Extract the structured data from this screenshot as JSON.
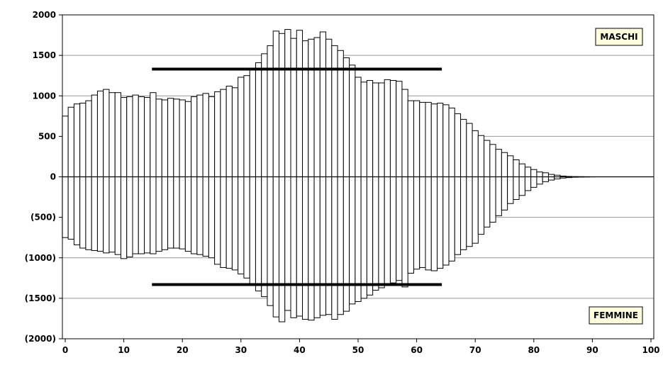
{
  "chart_data": {
    "type": "bar",
    "title": "",
    "xlabel": "",
    "ylabel": "",
    "xlim": [
      0,
      100
    ],
    "ylim": [
      -2000,
      2000
    ],
    "grid": true,
    "x": [
      0,
      1,
      2,
      3,
      4,
      5,
      6,
      7,
      8,
      9,
      10,
      11,
      12,
      13,
      14,
      15,
      16,
      17,
      18,
      19,
      20,
      21,
      22,
      23,
      24,
      25,
      26,
      27,
      28,
      29,
      30,
      31,
      32,
      33,
      34,
      35,
      36,
      37,
      38,
      39,
      40,
      41,
      42,
      43,
      44,
      45,
      46,
      47,
      48,
      49,
      50,
      51,
      52,
      53,
      54,
      55,
      56,
      57,
      58,
      59,
      60,
      61,
      62,
      63,
      64,
      65,
      66,
      67,
      68,
      69,
      70,
      71,
      72,
      73,
      74,
      75,
      76,
      77,
      78,
      79,
      80,
      81,
      82,
      83,
      84,
      85,
      86,
      87,
      88,
      89,
      90,
      91,
      92,
      93,
      94,
      95,
      96,
      97,
      98,
      99,
      100
    ],
    "series": [
      {
        "name": "MASCHI",
        "values": [
          750,
          860,
          900,
          910,
          940,
          1010,
          1060,
          1080,
          1040,
          1040,
          980,
          990,
          1010,
          990,
          980,
          1040,
          960,
          950,
          970,
          960,
          950,
          930,
          990,
          1010,
          1030,
          990,
          1050,
          1080,
          1120,
          1100,
          1230,
          1250,
          1330,
          1410,
          1520,
          1620,
          1800,
          1770,
          1820,
          1710,
          1810,
          1680,
          1700,
          1720,
          1790,
          1700,
          1620,
          1560,
          1470,
          1380,
          1230,
          1170,
          1190,
          1160,
          1160,
          1200,
          1190,
          1180,
          1080,
          940,
          940,
          920,
          920,
          900,
          910,
          890,
          850,
          780,
          710,
          660,
          570,
          510,
          450,
          400,
          340,
          300,
          260,
          210,
          160,
          120,
          90,
          60,
          50,
          30,
          20,
          10,
          5,
          3,
          2,
          1,
          0,
          0,
          0,
          0,
          0,
          0,
          0,
          0,
          0,
          0,
          0
        ]
      },
      {
        "name": "FEMMINE",
        "values": [
          -750,
          -770,
          -840,
          -880,
          -900,
          -910,
          -920,
          -940,
          -930,
          -960,
          -1010,
          -990,
          -950,
          -950,
          -940,
          -950,
          -920,
          -900,
          -880,
          -880,
          -890,
          -920,
          -950,
          -960,
          -980,
          -1000,
          -1080,
          -1120,
          -1130,
          -1150,
          -1200,
          -1250,
          -1330,
          -1410,
          -1480,
          -1590,
          -1730,
          -1790,
          -1650,
          -1740,
          -1720,
          -1760,
          -1770,
          -1740,
          -1710,
          -1700,
          -1760,
          -1700,
          -1660,
          -1570,
          -1540,
          -1500,
          -1460,
          -1400,
          -1370,
          -1320,
          -1310,
          -1280,
          -1360,
          -1190,
          -1140,
          -1120,
          -1150,
          -1160,
          -1130,
          -1090,
          -1040,
          -960,
          -900,
          -860,
          -820,
          -710,
          -620,
          -560,
          -480,
          -410,
          -330,
          -280,
          -230,
          -170,
          -130,
          -90,
          -60,
          -40,
          -25,
          -15,
          -10,
          -5,
          -3,
          -2,
          -1,
          0,
          0,
          0,
          0,
          0,
          0,
          0,
          0,
          0,
          0
        ]
      }
    ],
    "reference_lines": [
      {
        "y": 1330,
        "x_start": 14.8,
        "x_end": 64.3
      },
      {
        "y": -1330,
        "x_start": 14.8,
        "x_end": 64.3
      }
    ],
    "y_ticks": [
      {
        "value": 2000,
        "label": "2000"
      },
      {
        "value": 1500,
        "label": "1500"
      },
      {
        "value": 1000,
        "label": "1000"
      },
      {
        "value": 500,
        "label": "500"
      },
      {
        "value": 0,
        "label": "0"
      },
      {
        "value": -500,
        "label": "(500)"
      },
      {
        "value": -1000,
        "label": "(1000)"
      },
      {
        "value": -1500,
        "label": "(1500)"
      },
      {
        "value": -2000,
        "label": "(2000)"
      }
    ],
    "x_ticks": [
      {
        "value": 0,
        "label": "0"
      },
      {
        "value": 10,
        "label": "10"
      },
      {
        "value": 20,
        "label": "20"
      },
      {
        "value": 30,
        "label": "30"
      },
      {
        "value": 40,
        "label": "40"
      },
      {
        "value": 50,
        "label": "50"
      },
      {
        "value": 60,
        "label": "60"
      },
      {
        "value": 70,
        "label": "70"
      },
      {
        "value": 80,
        "label": "80"
      },
      {
        "value": 90,
        "label": "90"
      },
      {
        "value": 100,
        "label": "100"
      }
    ],
    "legend": {
      "top_right_label": "MASCHI",
      "bottom_right_label": "FEMMINE",
      "placement": "top-right / bottom-right"
    },
    "colors": {
      "bar_fill": "#ffffff",
      "bar_stroke": "#000000",
      "grid": "#999999",
      "legend_bg": "#ffffe0",
      "reference_line": "#000000"
    }
  }
}
